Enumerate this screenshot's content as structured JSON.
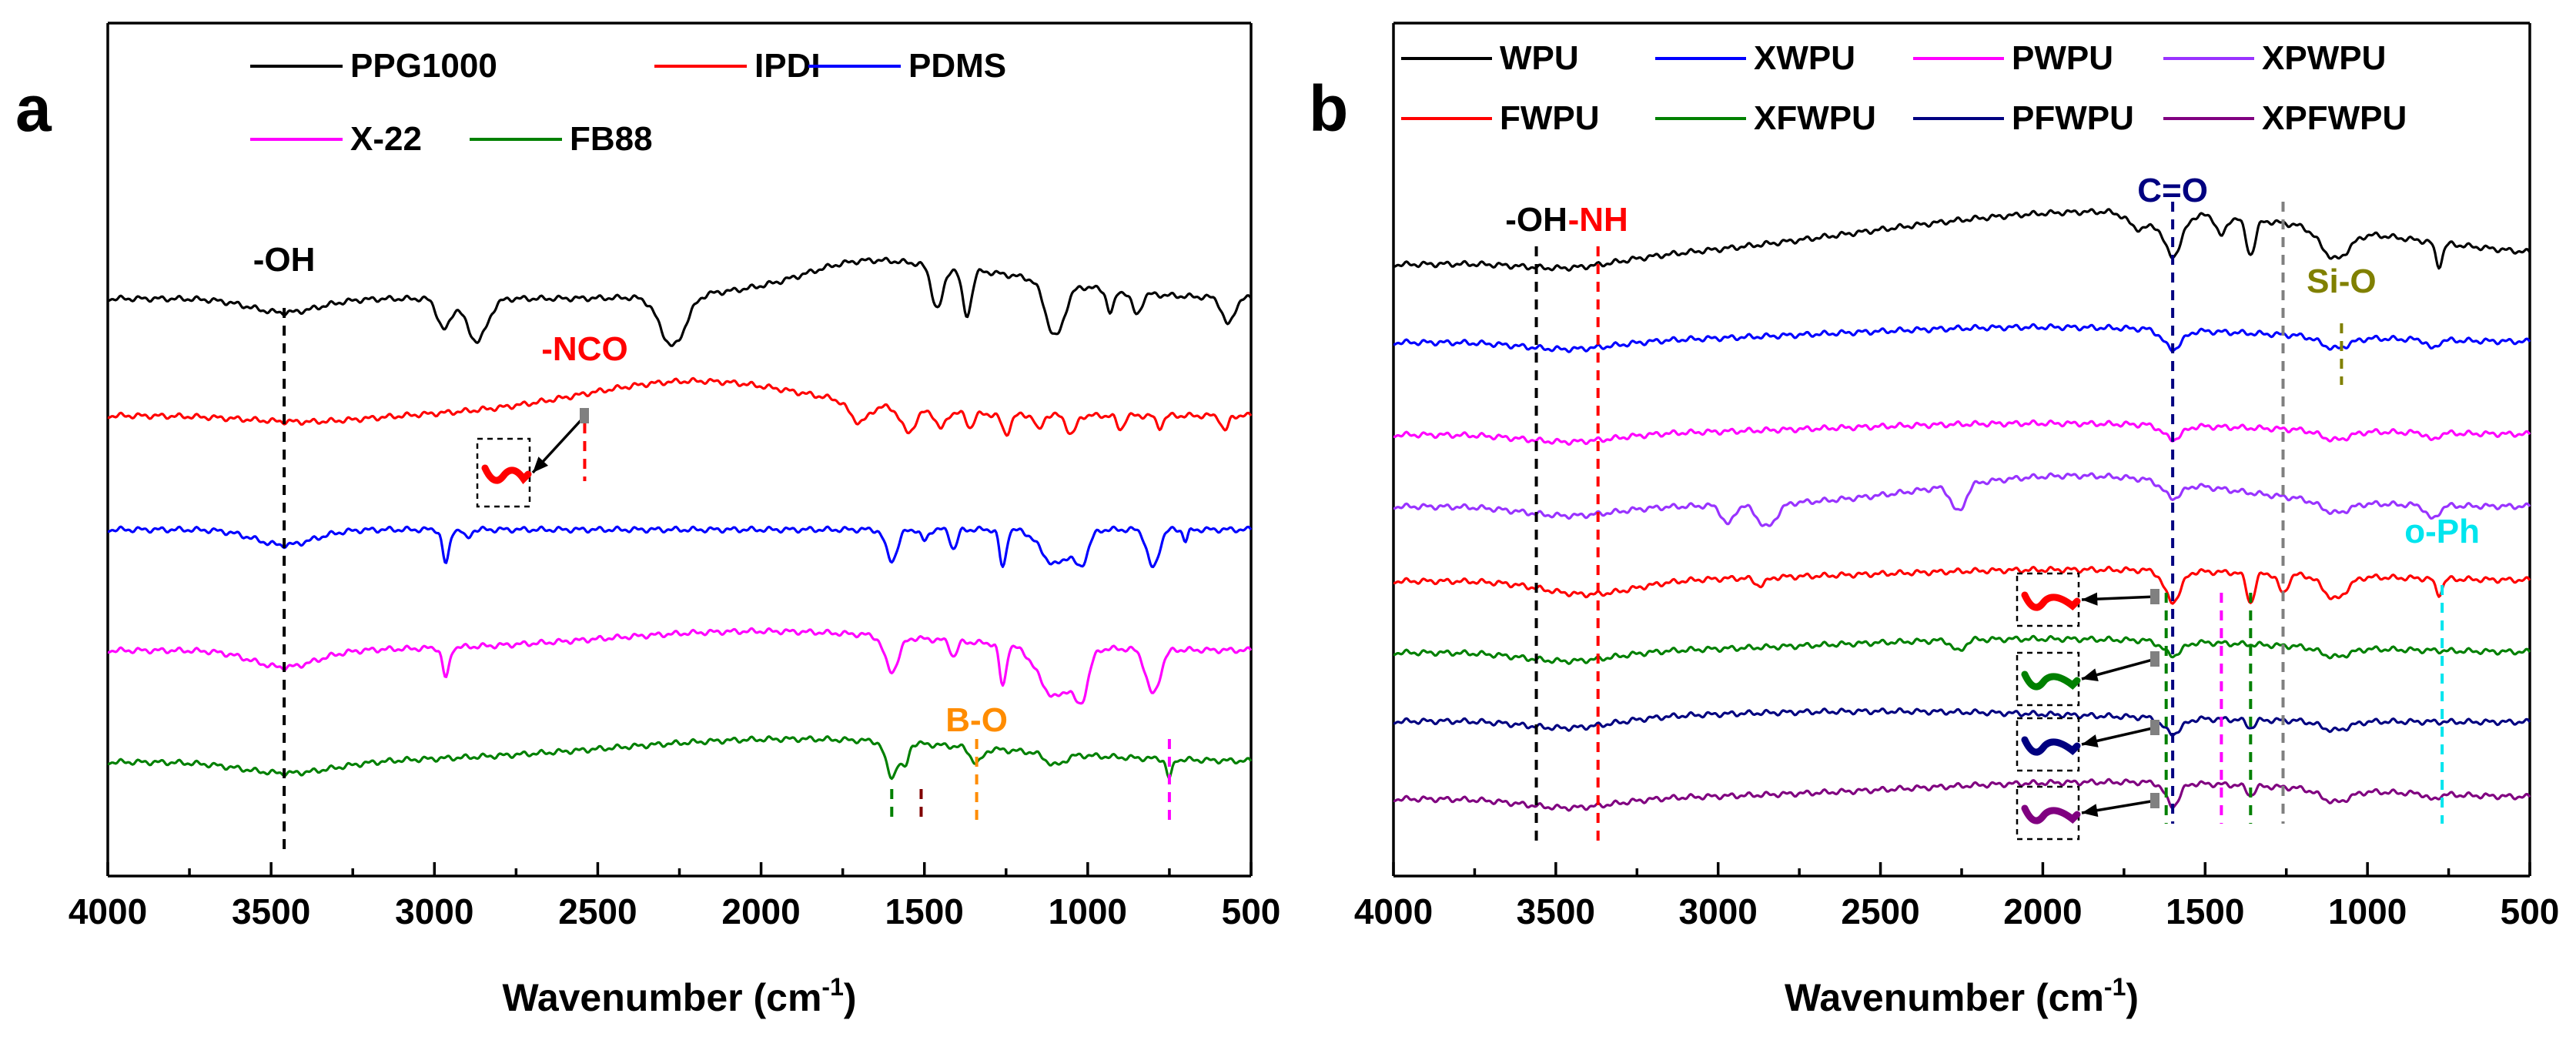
{
  "chart_data": [
    {
      "type": "line",
      "panel": "a",
      "xlabel": "Wavenumber (cm",
      "xlabel_sup": "-1",
      "xlabel_close": ")",
      "ylabel": "",
      "xlim": [
        4000,
        500
      ],
      "x_reversed": true,
      "xticks": [
        4000,
        3500,
        3000,
        2500,
        2000,
        1500,
        1000,
        500
      ],
      "legend_position": "top",
      "series": [
        {
          "name": "PPG1000",
          "color": "#000000"
        },
        {
          "name": "IPDI",
          "color": "#ff0000"
        },
        {
          "name": "PDMS",
          "color": "#0000ff"
        },
        {
          "name": "X-22",
          "color": "#ff00ff"
        },
        {
          "name": "FB88",
          "color": "#008000"
        }
      ],
      "annotations": [
        {
          "text": "-OH",
          "x": 3460,
          "color": "#000000"
        },
        {
          "text": "-NCO",
          "x": 2540,
          "color": "#ff0000"
        },
        {
          "text": "B-O",
          "x": 1340,
          "color": "#ff8c00"
        }
      ],
      "marker_lines": [
        {
          "x": 3460,
          "color": "#000000"
        },
        {
          "x": 2540,
          "color": "#ff0000"
        },
        {
          "x": 1600,
          "color": "#008000"
        },
        {
          "x": 1510,
          "color": "#800000"
        },
        {
          "x": 1340,
          "color": "#ff8c00"
        },
        {
          "x": 750,
          "color": "#ff00ff"
        }
      ]
    },
    {
      "type": "line",
      "panel": "b",
      "xlabel": "Wavenumber (cm",
      "xlabel_sup": "-1",
      "xlabel_close": ")",
      "ylabel": "",
      "xlim": [
        4000,
        500
      ],
      "x_reversed": true,
      "xticks": [
        4000,
        3500,
        3000,
        2500,
        2000,
        1500,
        1000,
        500
      ],
      "legend_position": "top",
      "series": [
        {
          "name": "WPU",
          "color": "#000000"
        },
        {
          "name": "XWPU",
          "color": "#0000ff"
        },
        {
          "name": "PWPU",
          "color": "#ff00ff"
        },
        {
          "name": "XPWPU",
          "color": "#9933ff"
        },
        {
          "name": "FWPU",
          "color": "#ff0000"
        },
        {
          "name": "XFWPU",
          "color": "#008000"
        },
        {
          "name": "PFWPU",
          "color": "#000080"
        },
        {
          "name": "XPFWPU",
          "color": "#800080"
        }
      ],
      "annotations": [
        {
          "text": "-OH",
          "x": 3560,
          "color": "#000000"
        },
        {
          "text": "-NH",
          "x": 3370,
          "color": "#ff0000"
        },
        {
          "text": "C=O",
          "x": 1600,
          "color": "#000080"
        },
        {
          "text": "Si-O",
          "x": 1080,
          "color": "#808000"
        },
        {
          "text": "o-Ph",
          "x": 770,
          "color": "#00e5ee"
        }
      ],
      "marker_lines": [
        {
          "x": 3560,
          "color": "#000000"
        },
        {
          "x": 3370,
          "color": "#ff0000"
        },
        {
          "x": 1620,
          "color": "#008000"
        },
        {
          "x": 1600,
          "color": "#000080"
        },
        {
          "x": 1450,
          "color": "#ff00ff"
        },
        {
          "x": 1360,
          "color": "#008000"
        },
        {
          "x": 1260,
          "color": "#808080"
        },
        {
          "x": 1080,
          "color": "#808000"
        },
        {
          "x": 770,
          "color": "#00e5ee"
        }
      ]
    }
  ]
}
